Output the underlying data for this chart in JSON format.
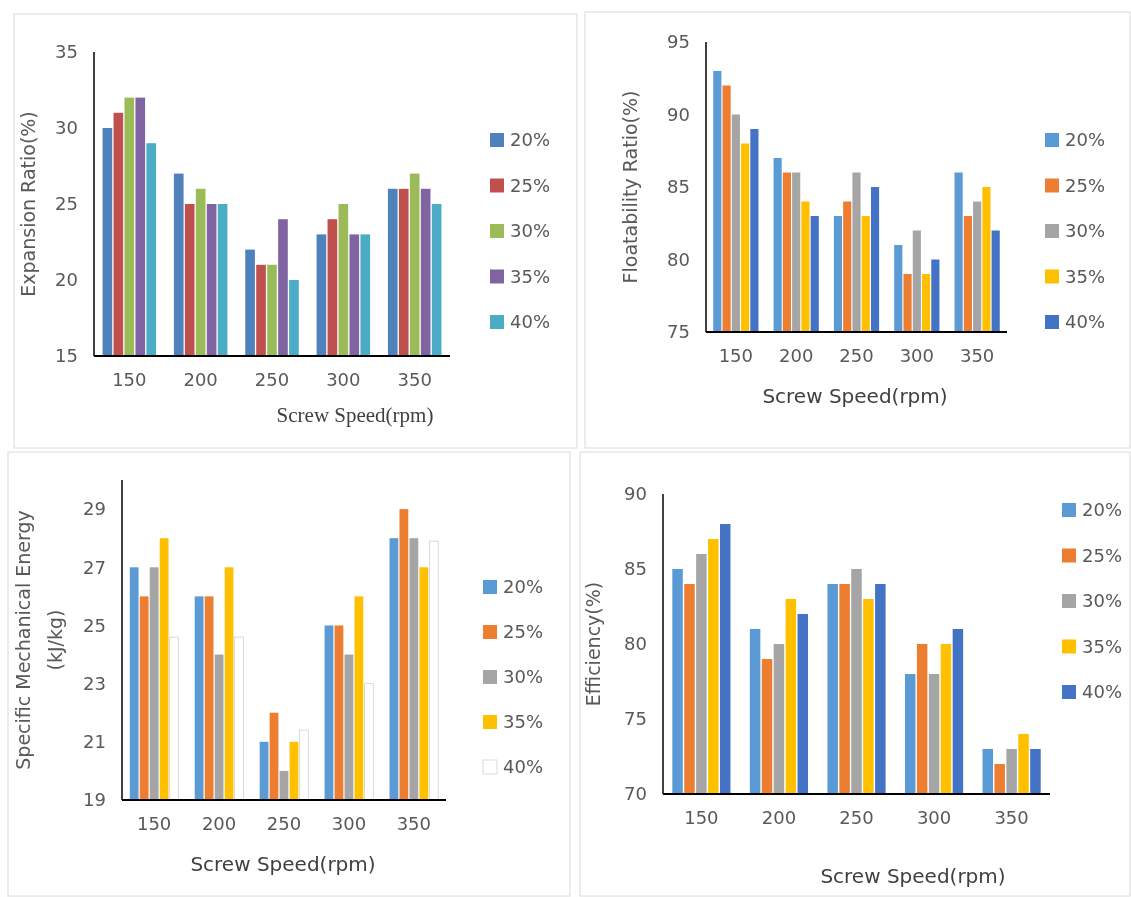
{
  "chart_data": [
    {
      "type": "bar",
      "categories": [
        "150",
        "200",
        "250",
        "300",
        "350"
      ],
      "xlabel": "Screw Speed(rpm)",
      "ylabel": "Expansion Ratio(%)",
      "ylim": [
        15,
        35
      ],
      "yticks": [
        15,
        20,
        25,
        30,
        35
      ],
      "legend": "right",
      "series": [
        {
          "name": "20%",
          "color": "#4f81bd",
          "values": [
            30,
            27,
            22,
            23,
            26
          ]
        },
        {
          "name": "25%",
          "color": "#c0504d",
          "values": [
            31,
            25,
            21,
            24,
            26
          ]
        },
        {
          "name": "30%",
          "color": "#9bbb59",
          "values": [
            32,
            26,
            21,
            25,
            27
          ]
        },
        {
          "name": "35%",
          "color": "#8064a2",
          "values": [
            32,
            25,
            24,
            23,
            26
          ]
        },
        {
          "name": "40%",
          "color": "#4bacc6",
          "values": [
            29,
            25,
            20,
            23,
            25
          ]
        }
      ]
    },
    {
      "type": "bar",
      "categories": [
        "150",
        "200",
        "250",
        "300",
        "350"
      ],
      "xlabel": "Screw Speed(rpm)",
      "ylabel": "Floatability Ratio(%)",
      "ylim": [
        75,
        95
      ],
      "yticks": [
        75,
        80,
        85,
        90,
        95
      ],
      "legend": "right",
      "series": [
        {
          "name": "20%",
          "color": "#5b9bd5",
          "values": [
            93,
            87,
            83,
            81,
            86
          ]
        },
        {
          "name": "25%",
          "color": "#ed7d31",
          "values": [
            92,
            86,
            84,
            79,
            83
          ]
        },
        {
          "name": "30%",
          "color": "#a5a5a5",
          "values": [
            90,
            86,
            86,
            82,
            84
          ]
        },
        {
          "name": "35%",
          "color": "#ffc000",
          "values": [
            88,
            84,
            83,
            79,
            85
          ]
        },
        {
          "name": "40%",
          "color": "#4472c4",
          "values": [
            89,
            83,
            85,
            80,
            82
          ]
        }
      ]
    },
    {
      "type": "bar",
      "categories": [
        "150",
        "200",
        "250",
        "300",
        "350"
      ],
      "xlabel": "Screw Speed(rpm)",
      "ylabel": "Specific Mechanical Energy\n(kJ/kg)",
      "ylim": [
        19,
        30
      ],
      "yticks": [
        19,
        21,
        23,
        25,
        27,
        29
      ],
      "legend": "right",
      "series": [
        {
          "name": "20%",
          "color": "#5b9bd5",
          "values": [
            27,
            26,
            21,
            25,
            28
          ]
        },
        {
          "name": "25%",
          "color": "#ed7d31",
          "values": [
            26,
            26,
            22,
            25,
            29
          ]
        },
        {
          "name": "30%",
          "color": "#a5a5a5",
          "values": [
            27,
            24,
            20,
            24,
            28
          ]
        },
        {
          "name": "35%",
          "color": "#ffc000",
          "values": [
            28,
            27,
            21,
            26,
            27
          ]
        },
        {
          "name": "40%",
          "color": "#ffffff",
          "values": [
            24.6,
            24.6,
            21.4,
            23,
            27.9
          ]
        }
      ]
    },
    {
      "type": "bar",
      "categories": [
        "150",
        "200",
        "250",
        "300",
        "350"
      ],
      "xlabel": "Screw Speed(rpm)",
      "ylabel": "Efficiency(%)",
      "ylim": [
        70,
        90
      ],
      "yticks": [
        70,
        75,
        80,
        85,
        90
      ],
      "legend": "right",
      "series": [
        {
          "name": "20%",
          "color": "#5b9bd5",
          "values": [
            85,
            81,
            84,
            78,
            73
          ]
        },
        {
          "name": "25%",
          "color": "#ed7d31",
          "values": [
            84,
            79,
            84,
            80,
            72
          ]
        },
        {
          "name": "30%",
          "color": "#a5a5a5",
          "values": [
            86,
            80,
            85,
            78,
            73
          ]
        },
        {
          "name": "35%",
          "color": "#ffc000",
          "values": [
            87,
            83,
            83,
            80,
            74
          ]
        },
        {
          "name": "40%",
          "color": "#4472c4",
          "values": [
            88,
            82,
            84,
            81,
            73
          ]
        }
      ]
    }
  ]
}
